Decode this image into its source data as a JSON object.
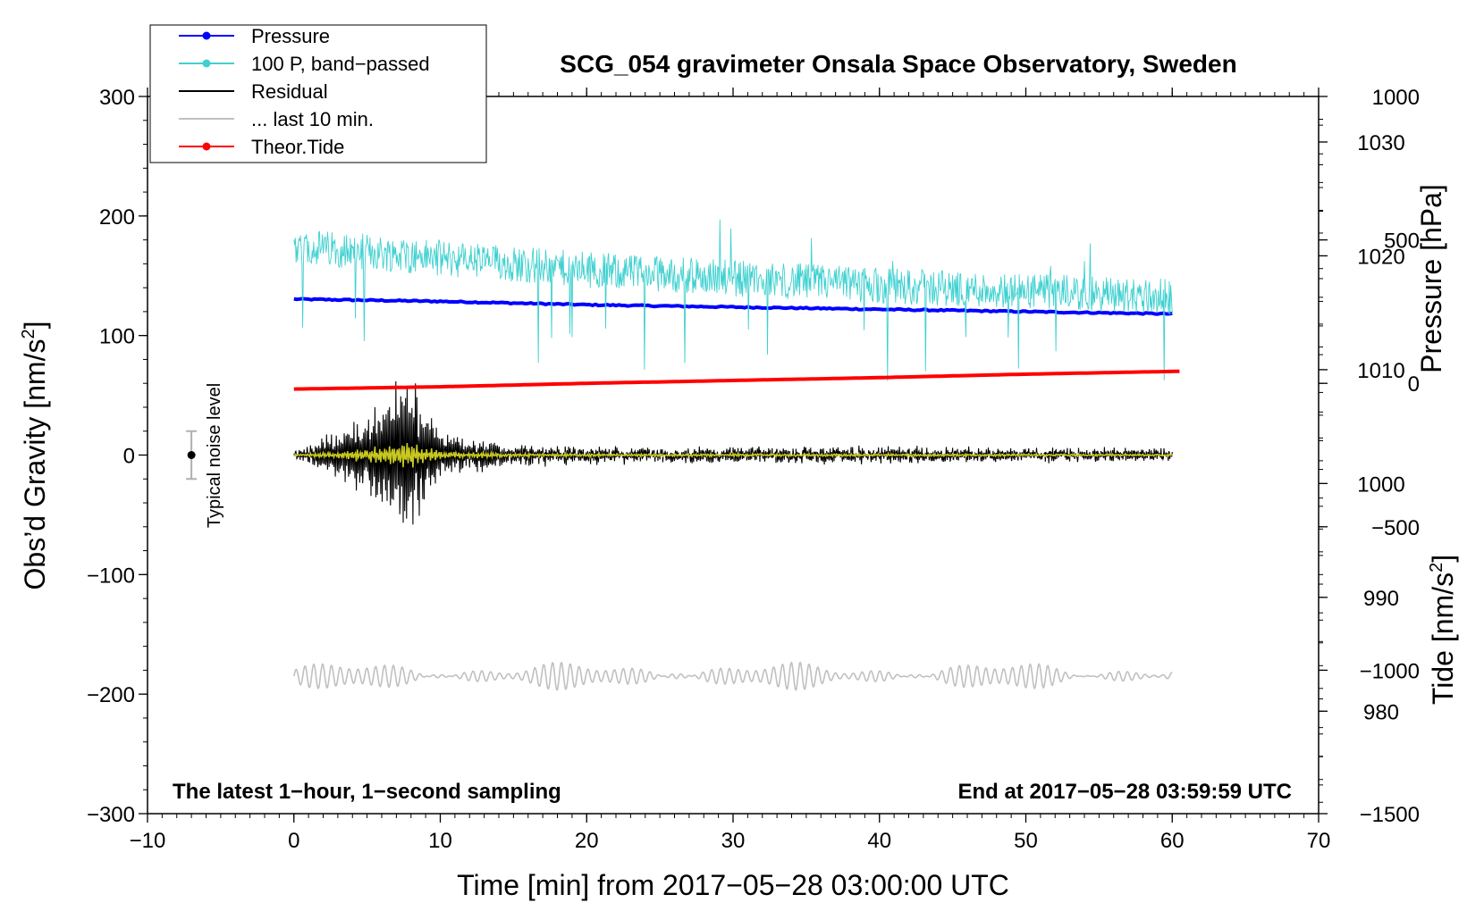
{
  "chart_data": {
    "type": "line",
    "title": "SCG_054 gravimeter Onsala Space Observatory, Sweden",
    "xlabel": "Time [min] from 2017−05−28 03:00:00 UTC",
    "ylabel_left": "Obs’d Gravity [nm/s",
    "ylabel_left_sup": "2",
    "ylabel_left_close": "]",
    "ylabel_right_pressure": "Pressure [hPa]",
    "ylabel_right_tide": "Tide [nm/s",
    "ylabel_right_tide_sup": "2",
    "ylabel_right_tide_close": "]",
    "xlim": [
      -10,
      70
    ],
    "ylim_left": [
      -300,
      300
    ],
    "ylim_pressure": [
      971,
      1034
    ],
    "ylim_tide": [
      -1500,
      1000
    ],
    "x_ticks": [
      -10,
      0,
      10,
      20,
      30,
      40,
      50,
      60,
      70
    ],
    "x_tick_labels": [
      "−10",
      "0",
      "10",
      "20",
      "30",
      "40",
      "50",
      "60",
      "70"
    ],
    "y_left_ticks": [
      300,
      200,
      100,
      0,
      -100,
      -200,
      -300
    ],
    "y_left_tick_labels": [
      "300",
      "200",
      "100",
      "0",
      "−100",
      "−200",
      "−300"
    ],
    "pressure_ticks": [
      1030,
      1020,
      1010,
      1000,
      990,
      980
    ],
    "pressure_tick_labels": [
      "1030",
      "1020",
      "1010",
      "1000",
      "990",
      "980"
    ],
    "tide_ticks": [
      1000,
      500,
      0,
      -500,
      -1000,
      -1500
    ],
    "tide_tick_labels": [
      "1000",
      "500",
      "0",
      "−500",
      "−1000",
      "−1500"
    ],
    "annotation_left": "The latest 1−hour, 1−second sampling",
    "annotation_right": "End at 2017−05−28 03:59:59 UTC",
    "noise_label": "Typical noise level",
    "noise_level": 20,
    "noise_x": -7,
    "legend": [
      {
        "label": "Pressure",
        "color": "#0000ff",
        "marker": true
      },
      {
        "label": "100 P, band−passed",
        "color": "#40d0d0",
        "marker": true
      },
      {
        "label": "Residual",
        "color": "#000000",
        "marker": false
      },
      {
        "label": "... last 10 min.",
        "color": "#c0c0c0",
        "marker": false
      },
      {
        "label": "Theor.Tide",
        "color": "#ff0000",
        "marker": true
      }
    ],
    "legend_position": "top-left",
    "series": [
      {
        "name": "Pressure",
        "axis": "pressure",
        "color": "#0000ff",
        "x": [
          0,
          10,
          20,
          30,
          40,
          50,
          60
        ],
        "y": [
          1016.2,
          1016.0,
          1015.7,
          1015.5,
          1015.3,
          1015.1,
          1014.9
        ]
      },
      {
        "name": "100 P, band−passed",
        "axis": "left",
        "color": "#40d0d0",
        "x": [
          0,
          10,
          20,
          30,
          40,
          50,
          60
        ],
        "y": [
          175,
          165,
          155,
          148,
          142,
          137,
          132
        ]
      },
      {
        "name": "Residual",
        "axis": "left",
        "color": "#000000",
        "x": [
          0,
          5,
          7.5,
          10,
          15,
          20,
          30,
          40,
          50,
          60
        ],
        "y": [
          0,
          35,
          80,
          20,
          8,
          6,
          5,
          6,
          5,
          4
        ]
      },
      {
        "name": "... last 10 min.",
        "axis": "left",
        "color": "#c0c0c0",
        "x": [
          0,
          10,
          20,
          30,
          40,
          50,
          60
        ],
        "y": [
          -185,
          -185,
          -185,
          -185,
          -185,
          -185,
          -185
        ]
      },
      {
        "name": "Theor.Tide",
        "axis": "tide",
        "color": "#ff0000",
        "x": [
          0,
          10,
          20,
          30,
          40,
          50,
          60.5
        ],
        "y": [
          -20,
          -12,
          0,
          10,
          20,
          32,
          42
        ]
      }
    ],
    "grid": false,
    "colors": {
      "residual_smooth": "#c8c820"
    }
  }
}
